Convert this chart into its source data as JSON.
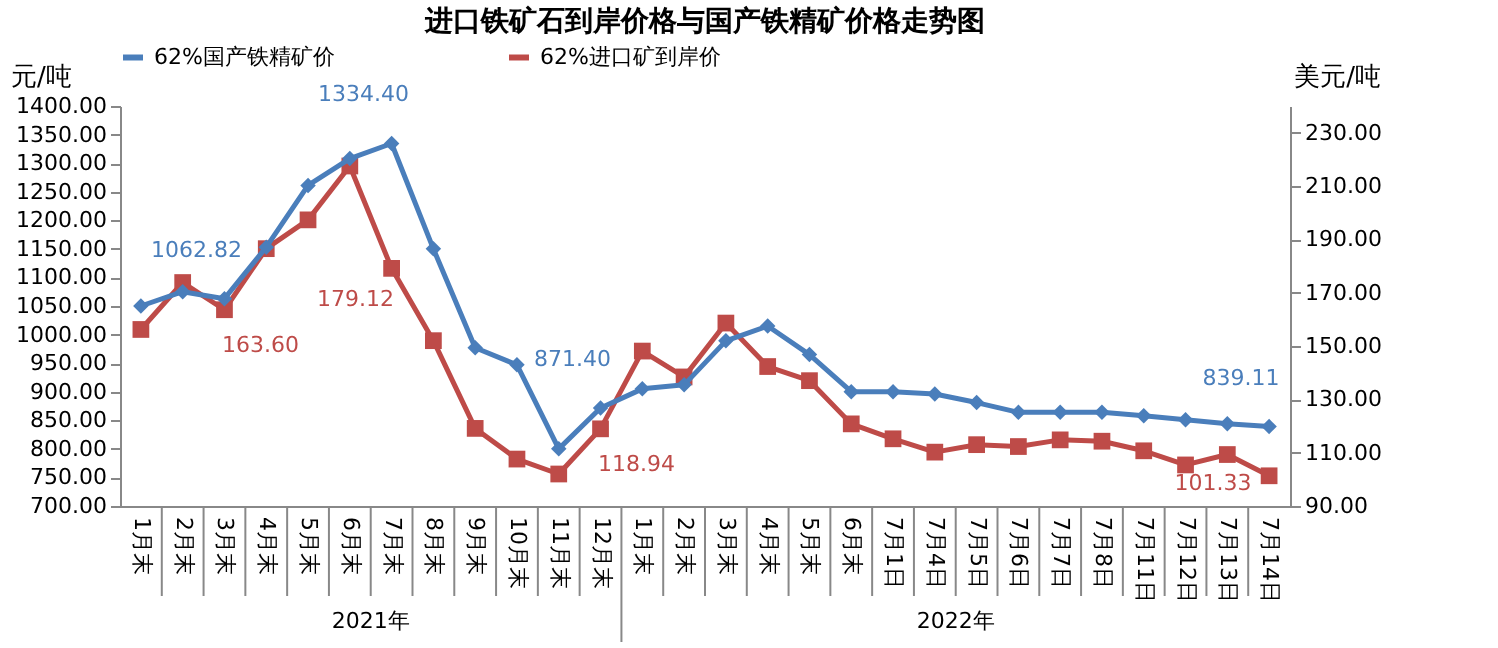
{
  "chart_data": {
    "type": "line",
    "title": "进口铁矿石到岸价格与国产铁精矿价格走势图",
    "ylabel": "元/吨",
    "y2label": "美元/吨",
    "categories": [
      "1月末",
      "2月末",
      "3月末",
      "4月末",
      "5月末",
      "6月末",
      "7月末",
      "8月末",
      "9月末",
      "10月末",
      "11月末",
      "12月末",
      "1月末",
      "2月末",
      "3月末",
      "4月末",
      "5月末",
      "6月末",
      "7月1日",
      "7月4日",
      "7月5日",
      "7月6日",
      "7月7日",
      "7月8日",
      "7月11日",
      "7月12日",
      "7月13日",
      "7月14日"
    ],
    "annotations": [
      "2021年",
      "2022年"
    ],
    "ylim": [
      700,
      1400
    ],
    "yticks": [
      {
        "value": 700,
        "label": "700.00"
      },
      {
        "value": 750,
        "label": "750.00"
      },
      {
        "value": 800,
        "label": "800.00"
      },
      {
        "value": 850,
        "label": "850.00"
      },
      {
        "value": 900,
        "label": "900.00"
      },
      {
        "value": 950,
        "label": "950.00"
      },
      {
        "value": 1000,
        "label": "1000.00"
      },
      {
        "value": 1050,
        "label": "1050.00"
      },
      {
        "value": 1100,
        "label": "1100.00"
      },
      {
        "value": 1150,
        "label": "1150.00"
      },
      {
        "value": 1200,
        "label": "1200.00"
      },
      {
        "value": 1250,
        "label": "1250.00"
      },
      {
        "value": 1300,
        "label": "1300.00"
      },
      {
        "value": 1350,
        "label": "1350.00"
      },
      {
        "value": 1400,
        "label": "1400.00"
      }
    ],
    "y2lim": [
      90,
      240
    ],
    "y2ticks": [
      {
        "value": 90,
        "label": "90.00"
      },
      {
        "value": 110,
        "label": "110.00"
      },
      {
        "value": 130,
        "label": "130.00"
      },
      {
        "value": 150,
        "label": "150.00"
      },
      {
        "value": 170,
        "label": "170.00"
      },
      {
        "value": 190,
        "label": "190.00"
      },
      {
        "value": 210,
        "label": "210.00"
      },
      {
        "value": 230,
        "label": "230.00"
      }
    ],
    "legend": "top",
    "grid": false,
    "line_style": "solid",
    "series": [
      {
        "name": "62%国产铁精矿价",
        "color": "#4a7ebb",
        "marker": "diamond",
        "values": [
          1050,
          1075,
          1062.82,
          1153,
          1261,
          1308,
          1334.4,
          1150,
          977,
          947,
          800,
          871.4,
          905,
          912,
          989,
          1015,
          965,
          900,
          900,
          896,
          881,
          864,
          864,
          864,
          858,
          851,
          844,
          839.11
        ],
        "value_labels": [
          null,
          null,
          "1062.82",
          null,
          null,
          null,
          "1334.40",
          null,
          null,
          null,
          null,
          "871.40",
          null,
          null,
          null,
          null,
          null,
          null,
          null,
          null,
          null,
          null,
          null,
          null,
          null,
          null,
          null,
          "839.11"
        ]
      },
      {
        "name": "62%进口矿到岸价",
        "color": "#be4b48",
        "marker": "square",
        "axis": "y2",
        "values": [
          156.2,
          173.8,
          163.6,
          186.5,
          197.3,
          217.5,
          179.12,
          152,
          119.1,
          107.6,
          102.0,
          118.94,
          148.1,
          138.4,
          158.6,
          142.3,
          137,
          120.8,
          115.2,
          110.2,
          113,
          112.3,
          114.8,
          114.3,
          110.7,
          105.4,
          109.3,
          101.33
        ],
        "value_labels": [
          null,
          null,
          "163.60",
          null,
          null,
          null,
          "179.12",
          null,
          null,
          null,
          null,
          "118.94",
          null,
          null,
          null,
          null,
          null,
          null,
          null,
          null,
          null,
          null,
          null,
          null,
          null,
          null,
          null,
          "101.33"
        ]
      }
    ]
  }
}
